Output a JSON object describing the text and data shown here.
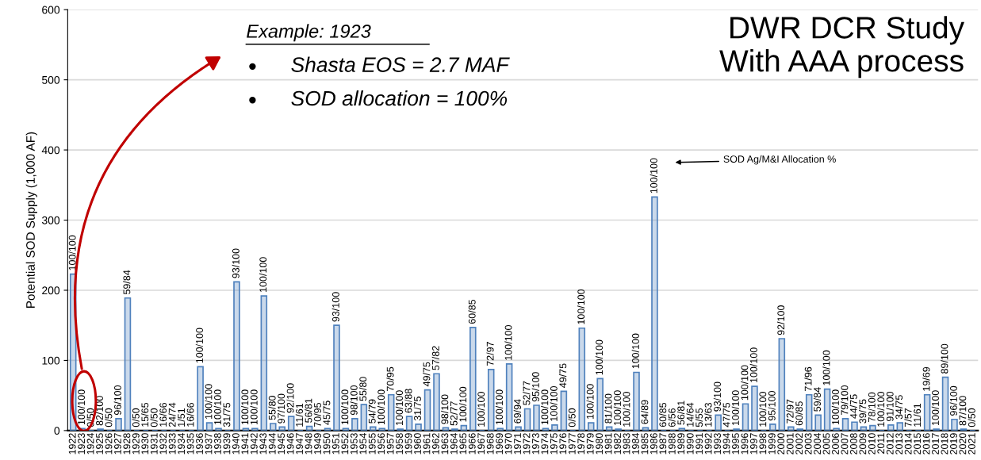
{
  "chart_data": {
    "type": "bar",
    "title": "DWR DCR Study\nWith AAA process",
    "ylabel": "Potential SOD Supply (1,000 AF)",
    "categories": [
      "1922",
      "1923",
      "1924",
      "1925",
      "1926",
      "1927",
      "1928",
      "1929",
      "1930",
      "1931",
      "1932",
      "1933",
      "1934",
      "1935",
      "1936",
      "1937",
      "1938",
      "1939",
      "1940",
      "1941",
      "1942",
      "1943",
      "1944",
      "1945",
      "1946",
      "1947",
      "1948",
      "1949",
      "1950",
      "1951",
      "1952",
      "1953",
      "1954",
      "1955",
      "1956",
      "1957",
      "1958",
      "1959",
      "1960",
      "1961",
      "1962",
      "1963",
      "1964",
      "1965",
      "1966",
      "1967",
      "1968",
      "1969",
      "1970",
      "1971",
      "1972",
      "1973",
      "1974",
      "1975",
      "1976",
      "1977",
      "1978",
      "1979",
      "1980",
      "1981",
      "1982",
      "1983",
      "1984",
      "1985",
      "1986",
      "1987",
      "1988",
      "1989",
      "1990",
      "1991",
      "1992",
      "1993",
      "1994",
      "1995",
      "1996",
      "1997",
      "1998",
      "1999",
      "2000",
      "2001",
      "2002",
      "2003",
      "2004",
      "2005",
      "2006",
      "2007",
      "2008",
      "2009",
      "2010",
      "2011",
      "2012",
      "2013",
      "2014",
      "2015",
      "2016",
      "2017",
      "2018",
      "2019",
      "2020",
      "2021"
    ],
    "values": [
      223,
      3,
      0,
      2,
      0,
      17,
      189,
      0,
      0,
      0,
      0,
      0,
      0,
      0,
      91,
      11,
      3,
      0,
      212,
      3,
      3,
      192,
      10,
      5,
      20,
      0,
      6,
      0,
      3,
      150,
      3,
      17,
      37,
      5,
      3,
      51,
      2,
      20,
      9,
      58,
      81,
      4,
      2,
      7,
      147,
      0,
      87,
      3,
      95,
      5,
      31,
      36,
      3,
      8,
      56,
      0,
      146,
      11,
      74,
      5,
      2,
      0,
      83,
      4,
      333,
      0,
      0,
      3,
      0,
      0,
      0,
      22,
      0,
      2,
      38,
      63,
      0,
      9,
      131,
      5,
      2,
      51,
      22,
      59,
      3,
      17,
      12,
      5,
      7,
      0,
      8,
      11,
      0,
      0,
      51,
      2,
      76,
      16,
      2,
      0
    ],
    "value_labels": [
      "100/100",
      "100/100",
      "0/50",
      "82/100",
      "0/50",
      "96/100",
      "59/84",
      "0/50",
      "15/65",
      "0/50",
      "16/66",
      "24/74",
      "1/51",
      "16/66",
      "100/100",
      "100/100",
      "100/100",
      "31/75",
      "93/100",
      "100/100",
      "100/100",
      "100/100",
      "55/80",
      "97/100",
      "92/100",
      "11/61",
      "56/81",
      "70/95",
      "45/75",
      "93/100",
      "100/100",
      "98/100",
      "55/80",
      "54/79",
      "100/100",
      "70/95",
      "100/100",
      "63/88",
      "31/75",
      "49/75",
      "57/82",
      "98/100",
      "52/77",
      "100/100",
      "60/85",
      "100/100",
      "72/97",
      "100/100",
      "100/100",
      "69/94",
      "52/77",
      "95/100",
      "100/100",
      "100/100",
      "49/75",
      "0/50",
      "100/100",
      "100/100",
      "100/100",
      "81/100",
      "100/100",
      "100/100",
      "100/100",
      "64/89",
      "100/100",
      "60/85",
      "6/56",
      "56/81",
      "14/64",
      "5/55",
      "13/63",
      "93/100",
      "47/75",
      "100/100",
      "100/100",
      "100/100",
      "100/100",
      "95/100",
      "92/100",
      "72/97",
      "60/85",
      "71/96",
      "59/84",
      "100/100",
      "100/100",
      "79/100",
      "44/75",
      "39/75",
      "78/100",
      "100/100",
      "91/100",
      "34/75",
      "7/57",
      "11/61",
      "19/69",
      "100/100",
      "89/100",
      "96/100",
      "87/100",
      "0/50"
    ],
    "color": "#4f81bd",
    "ylim": [
      0,
      600
    ],
    "yticks": [
      0,
      100,
      200,
      300,
      400,
      500,
      600
    ],
    "grid": "y",
    "annotations": [
      "Example: 1923",
      "Shasta EOS = 2.7 MAF",
      "SOD allocation = 100%",
      "SOD Ag/M&I Allocation %"
    ]
  }
}
